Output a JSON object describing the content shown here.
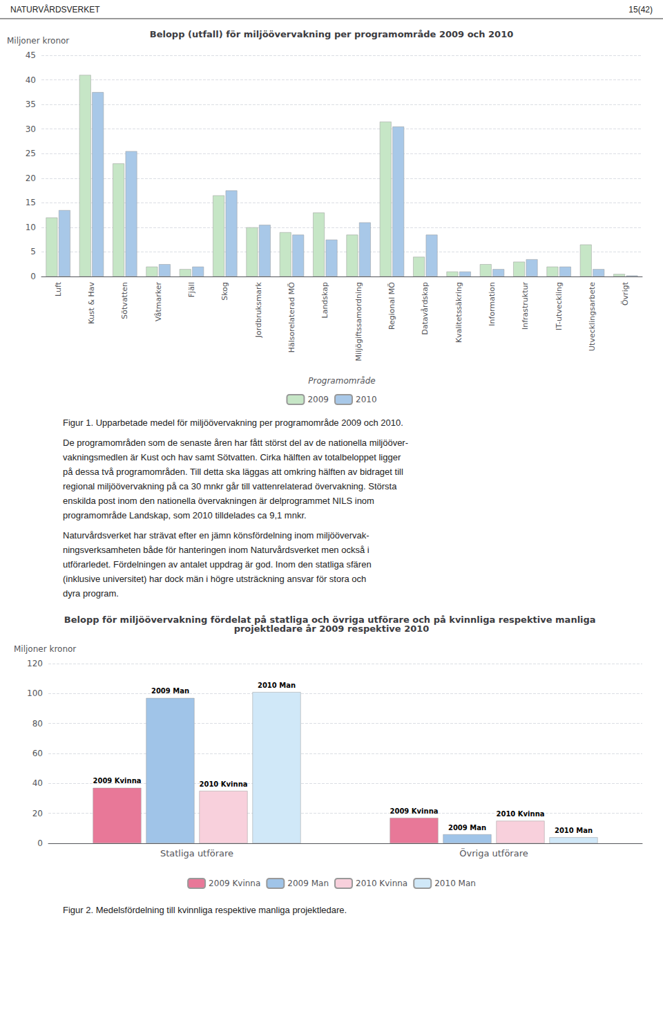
{
  "chart_data": [
    {
      "type": "bar",
      "title": "Belopp (utfall) för miljöövervakning per programområde 2009 och 2010",
      "ylabel": "Miljoner kronor",
      "xlabel": "Programområde",
      "categories": [
        "Luft",
        "Kust & Hav",
        "Sötvatten",
        "Våtmarker",
        "Fjäll",
        "Skog",
        "Jordbruksmark",
        "Hälsorelaterad MÖ",
        "Landskap",
        "Miljögiftssamordning",
        "Regional MÖ",
        "Datavårdskap",
        "Kvalitetssäkring",
        "Information",
        "Infrastruktur",
        "IT-utveckling",
        "Utvecklingsarbete",
        "Övrigt"
      ],
      "series": [
        {
          "name": "2009",
          "color": "#c6e6c6",
          "values": [
            12,
            41,
            23,
            2,
            1.5,
            16.5,
            10,
            9,
            13,
            8.5,
            31.5,
            4,
            1,
            2.5,
            3,
            2,
            6.5,
            0.5
          ]
        },
        {
          "name": "2010",
          "color": "#a8c8e8",
          "values": [
            13.5,
            37.5,
            25.5,
            2.5,
            2,
            17.5,
            10.5,
            8.5,
            7.5,
            11,
            30.5,
            8.5,
            1.0,
            1.5,
            3.5,
            2,
            1.5,
            0.2
          ]
        }
      ],
      "ylim": [
        0,
        45
      ],
      "yticks": [
        0,
        5,
        10,
        15,
        20,
        25,
        30,
        35,
        40,
        45
      ],
      "grid": true,
      "legend": "bottom",
      "annotations": [
        [
          "NATURVÅRDSVERKET",
          "15(42)"
        ],
        [
          "Figur 1. Upparbetade medel för miljöövervakning per programområde 2009 och 2010."
        ],
        [
          "De programområden som de senaste åren har fått störst del av de nationella miljööver-",
          "vakningsmedlen är Kust och hav samt Sötvatten. Cirka hälften av totalbeloppet ligger",
          "på dessa två programområden. Till detta ska läggas att omkring hälften av bidraget till",
          "regional miljöövervakning på ca 30 mnkr går till vattenrelaterad övervakning. Största",
          "enskilda post inom den nationella övervakningen är delprogrammet NILS inom",
          "programområde Landskap, som 2010 tilldelades ca 9,1 mnkr."
        ],
        [
          "Naturvårdsverket har strävat efter en jämn könsfördelning inom miljöövervak-",
          "ningsverksamheten både för hanteringen inom Naturvårdsverket men också i",
          "utförarledet. Fördelningen av antalet uppdrag är god. Inom den statliga sfären",
          "(inklusive universitet) har dock män i högre utsträckning ansvar för stora och",
          "dyra program."
        ]
      ]
    },
    {
      "type": "bar",
      "title": "Belopp för miljöövervakning fördelat på statliga och övriga utförare och på kvinnliga respektive manliga projektledare år 2009 respektive 2010",
      "ylabel": "Miljoner kronor",
      "categories": [
        "Statliga utförare",
        "Övriga utförare"
      ],
      "series": [
        {
          "name": "2009 Kvinna",
          "color": "#e87898",
          "values": [
            37,
            17
          ]
        },
        {
          "name": "2009 Man",
          "color": "#a0c4e8",
          "values": [
            97,
            6
          ]
        },
        {
          "name": "2010 Kvinna",
          "color": "#f8d0dc",
          "values": [
            35,
            15
          ]
        },
        {
          "name": "2010 Man",
          "color": "#d0e8f8",
          "values": [
            101,
            4
          ]
        }
      ],
      "ylim": [
        0,
        120
      ],
      "yticks": [
        0,
        20,
        40,
        60,
        80,
        100,
        120
      ],
      "grid": true,
      "legend": "bottom",
      "annotations": [
        [
          "Figur 2. Medelsfördelning till kvinnliga respektive manliga projektledare."
        ]
      ]
    }
  ]
}
